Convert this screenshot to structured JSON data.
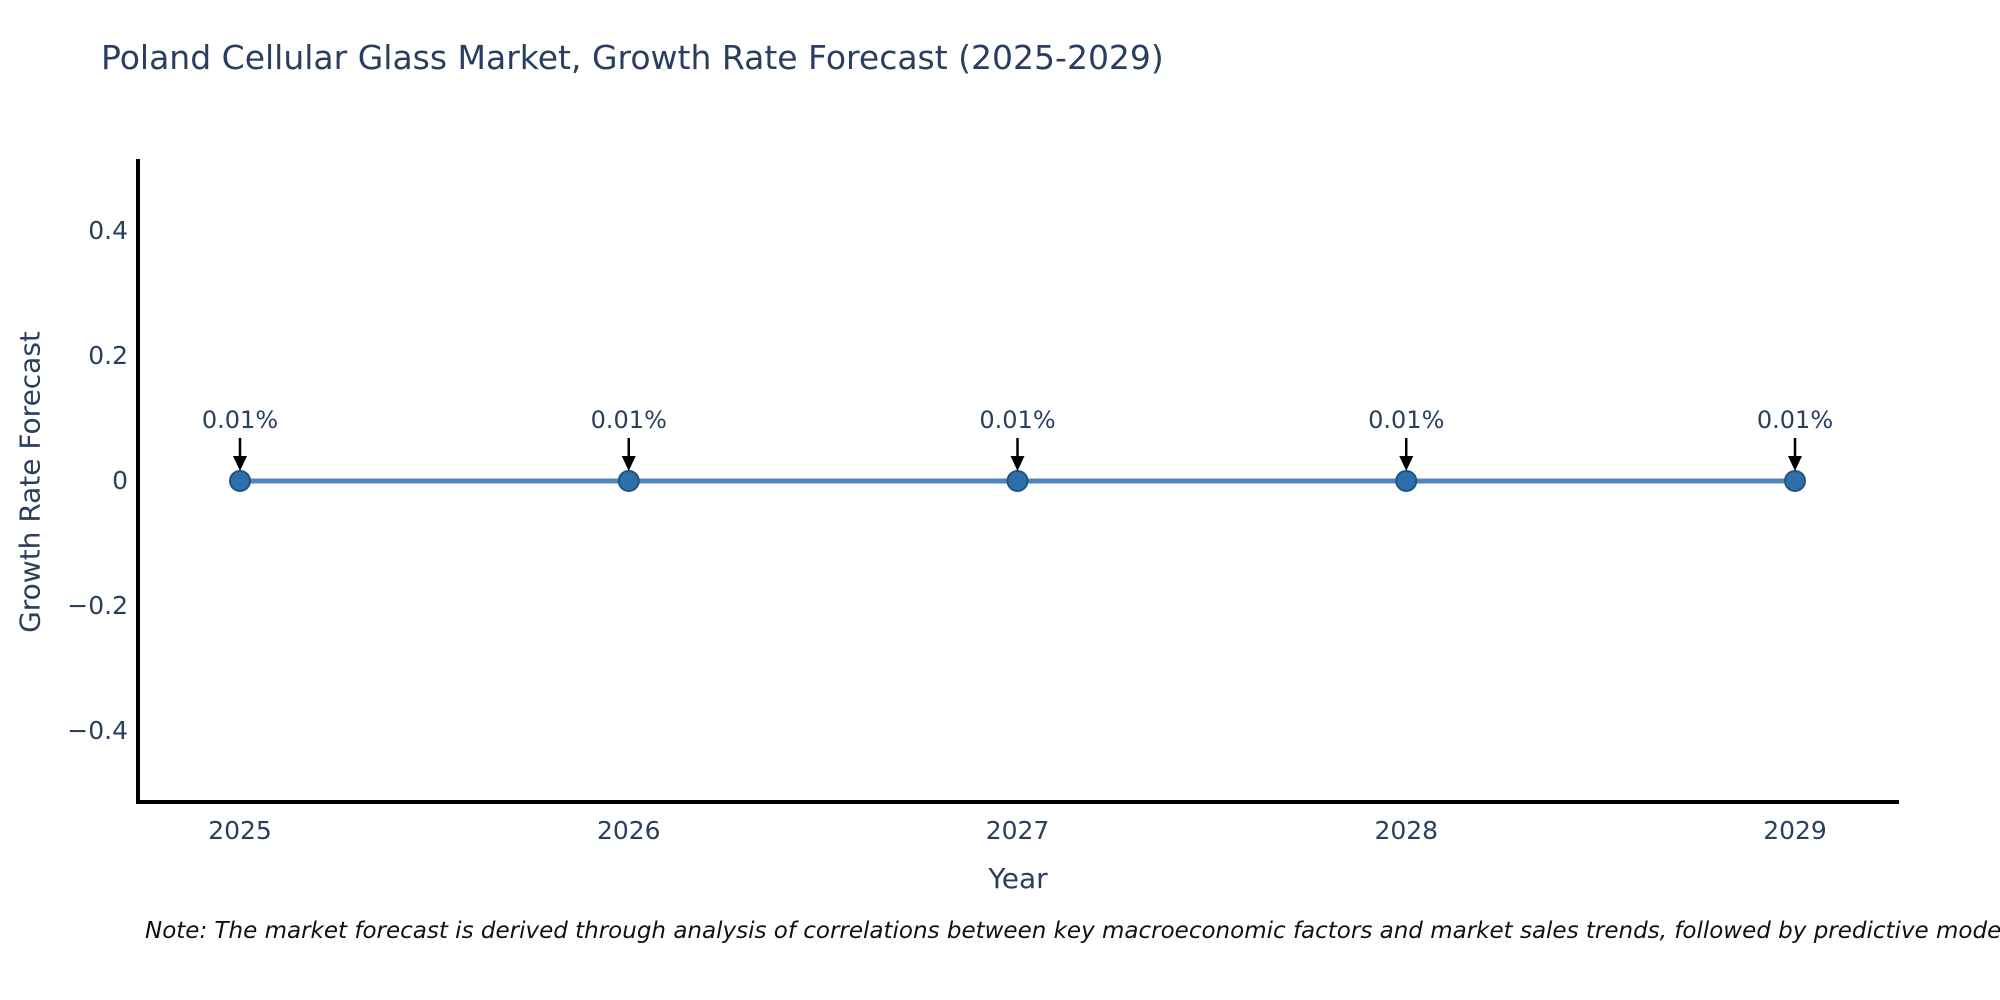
{
  "title": "Poland Cellular Glass Market, Growth Rate Forecast (2025-2029)",
  "note": "Note: The market forecast is derived through analysis of correlations between key macroeconomic factors and market sales trends, followed by predictive modeling to project future sales",
  "chart_data": {
    "type": "line",
    "title": "Poland Cellular Glass Market, Growth Rate Forecast (2025-2029)",
    "xlabel": "Year",
    "ylabel": "Growth Rate Forecast",
    "categories": [
      "2025",
      "2026",
      "2027",
      "2028",
      "2029"
    ],
    "values_percent": [
      0.01,
      0.01,
      0.01,
      0.01,
      0.01
    ],
    "values_axis": [
      0.0001,
      0.0001,
      0.0001,
      0.0001,
      0.0001
    ],
    "point_labels": [
      "0.01%",
      "0.01%",
      "0.01%",
      "0.01%",
      "0.01%"
    ],
    "ytick_labels": [
      "0.4",
      "0.2",
      "0",
      "−0.2",
      "−0.4"
    ],
    "ytick_values": [
      0.4,
      0.2,
      0,
      -0.2,
      -0.4
    ],
    "ylim": [
      -0.52,
      0.51
    ],
    "grid": false,
    "legend_position": "none",
    "colors": {
      "line": "#4f86bd",
      "marker_fill": "#2f6fa9",
      "marker_edge": "#1f567f",
      "axis_line": "#000000",
      "text": "#2a3f5f",
      "annotation_arrow": "#000000",
      "background": "#ffffff"
    }
  }
}
